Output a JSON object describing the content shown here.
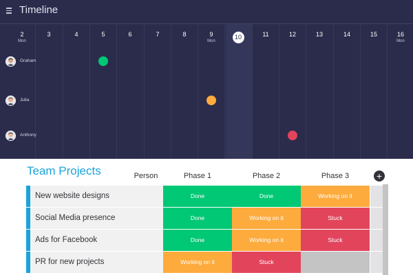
{
  "timeline": {
    "title": "Timeline",
    "days": [
      {
        "num": "2",
        "dow": "Mon"
      },
      {
        "num": "3",
        "dow": ""
      },
      {
        "num": "4",
        "dow": ""
      },
      {
        "num": "5",
        "dow": ""
      },
      {
        "num": "6",
        "dow": ""
      },
      {
        "num": "7",
        "dow": ""
      },
      {
        "num": "8",
        "dow": ""
      },
      {
        "num": "9",
        "dow": "Mon"
      },
      {
        "num": "10",
        "dow": ""
      },
      {
        "num": "11",
        "dow": ""
      },
      {
        "num": "12",
        "dow": ""
      },
      {
        "num": "13",
        "dow": ""
      },
      {
        "num": "14",
        "dow": ""
      },
      {
        "num": "15",
        "dow": ""
      },
      {
        "num": "16",
        "dow": "Mon"
      }
    ],
    "today": "10",
    "rows": [
      {
        "name": "Graham",
        "dot_day": "5",
        "dot_color": "#00c875"
      },
      {
        "name": "Julia",
        "dot_day": "9",
        "dot_color": "#fdab3d"
      },
      {
        "name": "Anthony",
        "dot_day": "12",
        "dot_color": "#e2445c"
      }
    ]
  },
  "board": {
    "title": "Team Projects",
    "columns": {
      "person": "Person",
      "phase1": "Phase 1",
      "phase2": "Phase 2",
      "phase3": "Phase 3"
    },
    "rows": [
      {
        "name": "New website designs",
        "phases": [
          "Done",
          "Done",
          "Working on it"
        ]
      },
      {
        "name": "Social Media presence",
        "phases": [
          "Done",
          "Working on it",
          "Stuck"
        ]
      },
      {
        "name": "Ads for Facebook",
        "phases": [
          "Done",
          "Working on it",
          "Stuck"
        ]
      },
      {
        "name": "PR for new projects",
        "phases": [
          "Working on it",
          "Stuck",
          ""
        ]
      }
    ]
  },
  "status_colors": {
    "Done": "#00c875",
    "Working on it": "#fdab3d",
    "Stuck": "#e2445c",
    "": "#c4c4c4"
  },
  "icons": {
    "menu": "hamburger-menu-icon",
    "add": "plus-circle-icon"
  }
}
